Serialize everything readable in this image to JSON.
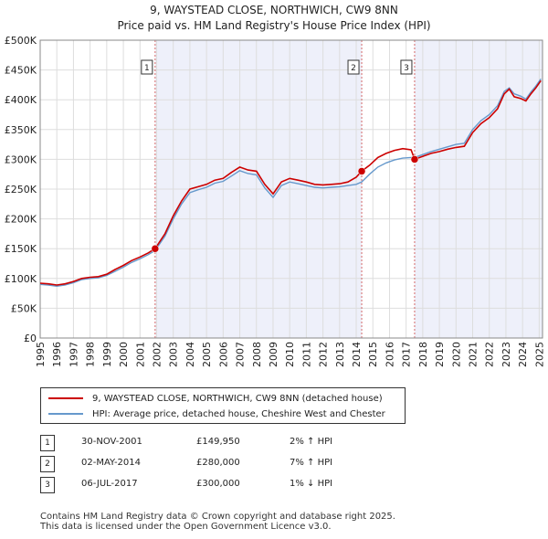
{
  "title": "9, WAYSTEAD CLOSE, NORTHWICH, CW9 8NN",
  "subtitle": "Price paid vs. HM Land Registry's House Price Index (HPI)",
  "legend": {
    "series1": "9, WAYSTEAD CLOSE, NORTHWICH, CW9 8NN (detached house)",
    "series2": "HPI: Average price, detached house, Cheshire West and Chester"
  },
  "colors": {
    "price": "#cc0000",
    "hpi": "#6699cc",
    "shade": "#eef0fa",
    "marker": "#cc0000"
  },
  "sales": [
    {
      "num": "1",
      "date": "30-NOV-2001",
      "price": "£149,950",
      "hpi": "2% ↑ HPI"
    },
    {
      "num": "2",
      "date": "02-MAY-2014",
      "price": "£280,000",
      "hpi": "7% ↑ HPI"
    },
    {
      "num": "3",
      "date": "06-JUL-2017",
      "price": "£300,000",
      "hpi": "1% ↓ HPI"
    }
  ],
  "footer": {
    "line1": "Contains HM Land Registry data © Crown copyright and database right 2025.",
    "line2": "This data is licensed under the Open Government Licence v3.0."
  },
  "chart_data": {
    "type": "line",
    "title": "9, WAYSTEAD CLOSE, NORTHWICH, CW9 8NN",
    "xlabel": "",
    "ylabel": "",
    "xlim": [
      1995,
      2025.2
    ],
    "ylim": [
      0,
      500000
    ],
    "y_ticks": [
      0,
      50000,
      100000,
      150000,
      200000,
      250000,
      300000,
      350000,
      400000,
      450000,
      500000
    ],
    "y_tick_labels": [
      "£0",
      "£50K",
      "£100K",
      "£150K",
      "£200K",
      "£250K",
      "£300K",
      "£350K",
      "£400K",
      "£450K",
      "£500K"
    ],
    "x_ticks": [
      1995,
      1996,
      1997,
      1998,
      1999,
      2000,
      2001,
      2002,
      2003,
      2004,
      2005,
      2006,
      2007,
      2008,
      2009,
      2010,
      2011,
      2012,
      2013,
      2014,
      2015,
      2016,
      2017,
      2018,
      2019,
      2020,
      2021,
      2022,
      2023,
      2024,
      2025
    ],
    "x_tick_labels": [
      "1995",
      "1996",
      "1997",
      "1998",
      "1999",
      "2000",
      "2001",
      "2002",
      "2003",
      "2004",
      "2005",
      "2006",
      "2007",
      "2008",
      "2009",
      "2010",
      "2011",
      "2012",
      "2013",
      "2014",
      "2015",
      "2016",
      "2017",
      "2018",
      "2019",
      "2020",
      "2021",
      "2022",
      "2023",
      "2024",
      "2025"
    ],
    "shaded_ranges": [
      [
        2001.91,
        2014.33
      ],
      [
        2017.51,
        2025.2
      ]
    ],
    "sale_markers": [
      {
        "label": "1",
        "x": 2001.91,
        "y": 149950
      },
      {
        "label": "2",
        "x": 2014.33,
        "y": 280000
      },
      {
        "label": "3",
        "x": 2017.51,
        "y": 300000
      }
    ],
    "series": [
      {
        "name": "9, WAYSTEAD CLOSE, NORTHWICH, CW9 8NN (detached house)",
        "x": [
          1995,
          1995.5,
          1996,
          1996.5,
          1997,
          1997.5,
          1998,
          1998.5,
          1999,
          1999.5,
          2000,
          2000.5,
          2001,
          2001.5,
          2001.91,
          2002.5,
          2003,
          2003.5,
          2004,
          2004.5,
          2005,
          2005.5,
          2006,
          2006.5,
          2007,
          2007.5,
          2008,
          2008.5,
          2009,
          2009.5,
          2010,
          2010.5,
          2011,
          2011.5,
          2012,
          2012.5,
          2013,
          2013.5,
          2014,
          2014.33,
          2014.8,
          2015.3,
          2015.8,
          2016.3,
          2016.8,
          2017.3,
          2017.51,
          2018,
          2018.5,
          2019,
          2019.5,
          2020,
          2020.5,
          2021,
          2021.5,
          2022,
          2022.5,
          2022.9,
          2023.2,
          2023.5,
          2023.9,
          2024.2,
          2024.5,
          2024.8,
          2025.1
        ],
        "values": [
          92000,
          91000,
          89000,
          91000,
          95000,
          100000,
          102000,
          103000,
          107000,
          115000,
          122000,
          130000,
          136000,
          143000,
          149950,
          175000,
          205000,
          230000,
          250000,
          254000,
          258000,
          265000,
          268000,
          278000,
          287000,
          282000,
          280000,
          258000,
          242000,
          262000,
          268000,
          265000,
          262000,
          258000,
          257000,
          258000,
          259000,
          262000,
          270000,
          280000,
          290000,
          303000,
          310000,
          315000,
          318000,
          316000,
          300000,
          305000,
          310000,
          313000,
          317000,
          320000,
          322000,
          345000,
          360000,
          370000,
          385000,
          410000,
          418000,
          405000,
          402000,
          398000,
          410000,
          420000,
          432000
        ]
      },
      {
        "name": "HPI: Average price, detached house, Cheshire West and Chester",
        "x": [
          1995,
          1995.5,
          1996,
          1996.5,
          1997,
          1997.5,
          1998,
          1998.5,
          1999,
          1999.5,
          2000,
          2000.5,
          2001,
          2001.5,
          2001.91,
          2002.5,
          2003,
          2003.5,
          2004,
          2004.5,
          2005,
          2005.5,
          2006,
          2006.5,
          2007,
          2007.5,
          2008,
          2008.5,
          2009,
          2009.5,
          2010,
          2010.5,
          2011,
          2011.5,
          2012,
          2012.5,
          2013,
          2013.5,
          2014,
          2014.33,
          2014.8,
          2015.3,
          2015.8,
          2016.3,
          2016.8,
          2017.3,
          2017.51,
          2018,
          2018.5,
          2019,
          2019.5,
          2020,
          2020.5,
          2021,
          2021.5,
          2022,
          2022.5,
          2022.9,
          2023.2,
          2023.5,
          2023.9,
          2024.2,
          2024.5,
          2024.8,
          2025.1
        ],
        "values": [
          90000,
          89000,
          87000,
          89000,
          93000,
          98000,
          100000,
          101000,
          105000,
          112000,
          119000,
          127000,
          133000,
          140000,
          147000,
          171000,
          200000,
          225000,
          244000,
          249000,
          253000,
          260000,
          263000,
          272000,
          281000,
          276000,
          274000,
          252000,
          236000,
          256000,
          262000,
          259000,
          256000,
          253000,
          252000,
          253000,
          254000,
          256000,
          258000,
          262000,
          275000,
          287000,
          294000,
          299000,
          302000,
          303000,
          303000,
          308000,
          313000,
          317000,
          321000,
          325000,
          327000,
          350000,
          365000,
          375000,
          390000,
          414000,
          420000,
          410000,
          406000,
          401000,
          413000,
          423000,
          435000
        ]
      }
    ]
  }
}
